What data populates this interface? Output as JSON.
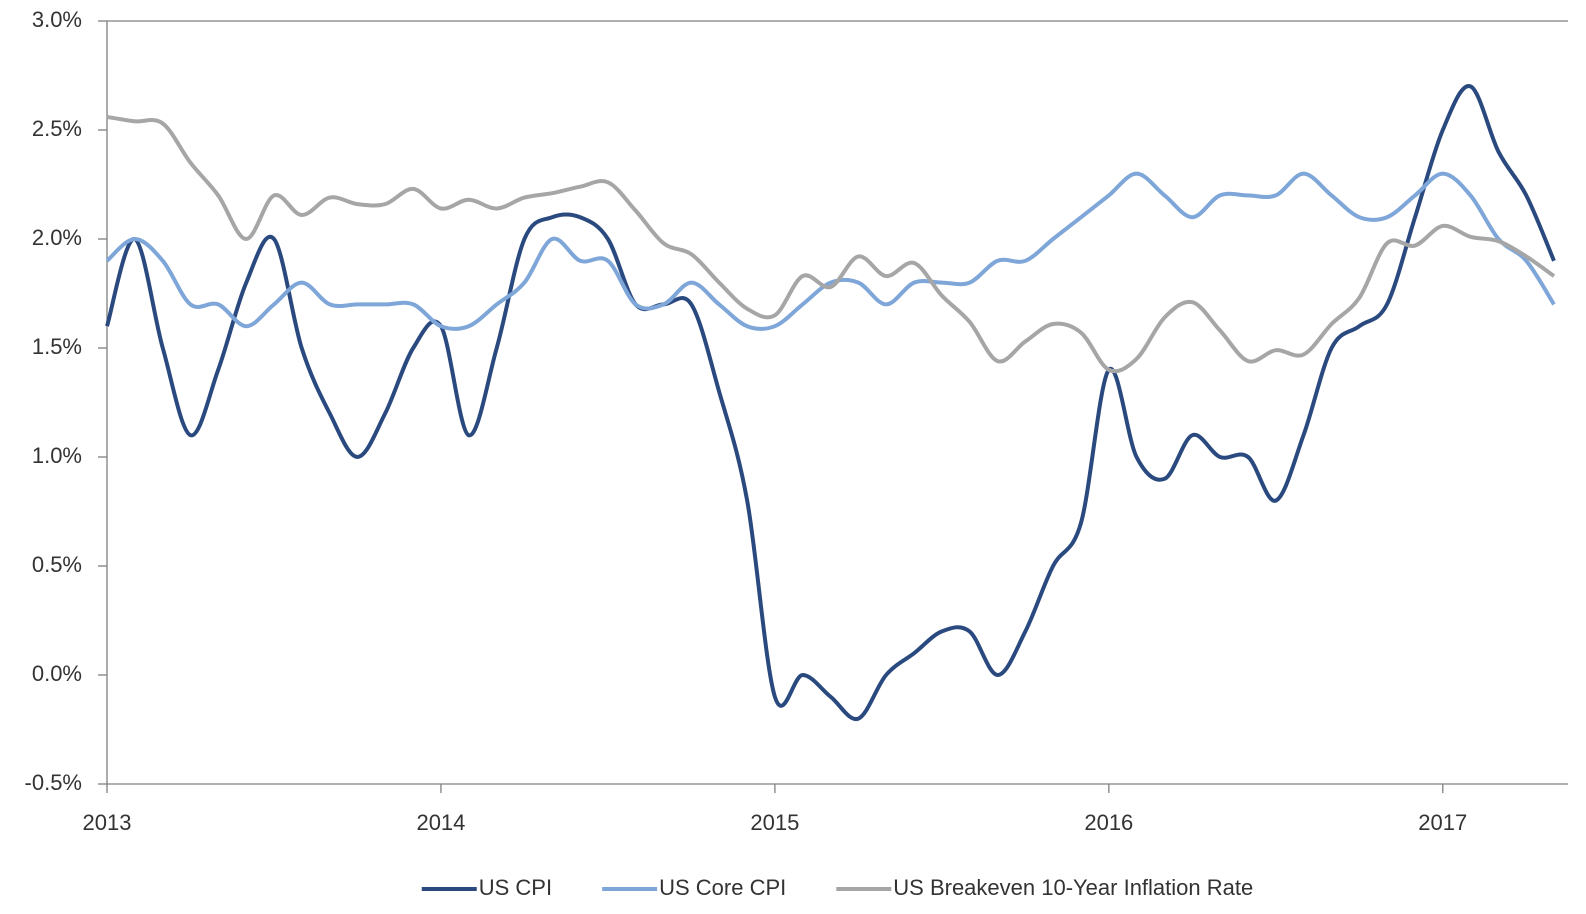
{
  "chart_data": {
    "type": "line",
    "x": [
      2013,
      2013.083,
      2013.167,
      2013.25,
      2013.333,
      2013.417,
      2013.5,
      2013.583,
      2013.667,
      2013.75,
      2013.833,
      2013.917,
      2014,
      2014.083,
      2014.167,
      2014.25,
      2014.333,
      2014.417,
      2014.5,
      2014.583,
      2014.667,
      2014.75,
      2014.833,
      2014.917,
      2015,
      2015.083,
      2015.167,
      2015.25,
      2015.333,
      2015.417,
      2015.5,
      2015.583,
      2015.667,
      2015.75,
      2015.833,
      2015.917,
      2016,
      2016.083,
      2016.167,
      2016.25,
      2016.333,
      2016.417,
      2016.5,
      2016.583,
      2016.667,
      2016.75,
      2016.833,
      2016.917,
      2017,
      2017.083,
      2017.167,
      2017.25,
      2017.333
    ],
    "series": [
      {
        "name": "US CPI",
        "color": "#2a4a7f",
        "values": [
          1.6,
          2.0,
          1.5,
          1.1,
          1.4,
          1.8,
          2.0,
          1.5,
          1.2,
          1.0,
          1.2,
          1.5,
          1.6,
          1.1,
          1.5,
          2.0,
          2.1,
          2.1,
          2.0,
          1.7,
          1.7,
          1.7,
          1.3,
          0.8,
          -0.1,
          0.0,
          -0.1,
          -0.2,
          0.0,
          0.1,
          0.2,
          0.2,
          0.0,
          0.2,
          0.5,
          0.7,
          1.4,
          1.0,
          0.9,
          1.1,
          1.0,
          1.0,
          0.8,
          1.1,
          1.5,
          1.6,
          1.7,
          2.1,
          2.5,
          2.7,
          2.4,
          2.2,
          1.9
        ]
      },
      {
        "name": "US Core CPI",
        "color": "#7ea6d8",
        "values": [
          1.9,
          2.0,
          1.9,
          1.7,
          1.7,
          1.6,
          1.7,
          1.8,
          1.7,
          1.7,
          1.7,
          1.7,
          1.6,
          1.6,
          1.7,
          1.8,
          2.0,
          1.9,
          1.9,
          1.7,
          1.7,
          1.8,
          1.7,
          1.6,
          1.6,
          1.7,
          1.8,
          1.8,
          1.7,
          1.8,
          1.8,
          1.8,
          1.9,
          1.9,
          2.0,
          2.1,
          2.2,
          2.3,
          2.2,
          2.1,
          2.2,
          2.2,
          2.2,
          2.3,
          2.2,
          2.1,
          2.1,
          2.2,
          2.3,
          2.2,
          2.0,
          1.9,
          1.7
        ]
      },
      {
        "name": "US Breakeven 10-Year Inflation Rate",
        "color": "#a6a6a6",
        "values": [
          2.56,
          2.54,
          2.53,
          2.35,
          2.2,
          2.0,
          2.2,
          2.11,
          2.19,
          2.16,
          2.16,
          2.23,
          2.14,
          2.18,
          2.14,
          2.19,
          2.21,
          2.24,
          2.26,
          2.13,
          1.98,
          1.93,
          1.8,
          1.68,
          1.65,
          1.83,
          1.78,
          1.92,
          1.83,
          1.89,
          1.74,
          1.62,
          1.44,
          1.53,
          1.61,
          1.57,
          1.4,
          1.45,
          1.64,
          1.71,
          1.58,
          1.44,
          1.49,
          1.47,
          1.61,
          1.73,
          1.98,
          1.97,
          2.06,
          2.01,
          1.99,
          1.92,
          1.83
        ]
      }
    ],
    "xlim": [
      2013,
      2017.375
    ],
    "xticks": [
      2013,
      2014,
      2015,
      2016,
      2017
    ],
    "ylim": [
      -0.5,
      3.0
    ],
    "yticks": [
      {
        "value": -0.5,
        "label": "-0.5%"
      },
      {
        "value": 0,
        "label": "0.0%"
      },
      {
        "value": 0.5,
        "label": "0.5%"
      },
      {
        "value": 1,
        "label": "1.0%"
      },
      {
        "value": 1.5,
        "label": "1.5%"
      },
      {
        "value": 2,
        "label": "2.0%"
      },
      {
        "value": 2.5,
        "label": "2.5%"
      },
      {
        "value": 3,
        "label": "3.0%"
      }
    ],
    "legend": "bottom"
  }
}
